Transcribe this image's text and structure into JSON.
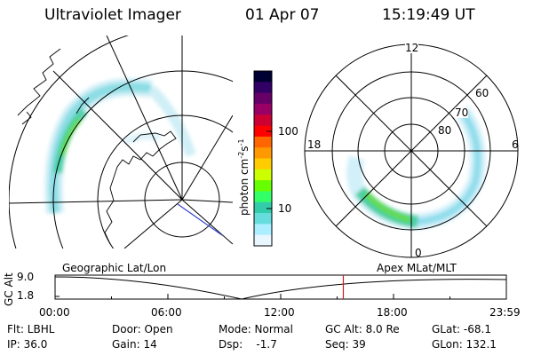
{
  "header": {
    "instrument": "Ultraviolet Imager",
    "date": "01 Apr 07",
    "time": "15:19:49 UT"
  },
  "colorbar": {
    "unit_label": "photon cm",
    "unit_exp1": "-2",
    "unit_mid": "s",
    "unit_exp2": "-1",
    "ticks": [
      "100",
      "10"
    ],
    "colors": [
      "#000033",
      "#330066",
      "#660066",
      "#990066",
      "#cc0033",
      "#ff0000",
      "#ff6600",
      "#ff9900",
      "#ffcc00",
      "#ccff00",
      "#66ff00",
      "#33ff66",
      "#33ccaa",
      "#66dddd",
      "#aaeeff",
      "#e8f6ff"
    ]
  },
  "polar_plot": {
    "mlt_labels": [
      "12",
      "18",
      "6",
      "0"
    ],
    "lat_labels": [
      "60",
      "70",
      "80"
    ]
  },
  "timeline": {
    "y_label": "GC Alt",
    "alt_top": "9.0",
    "alt_bottom": "1.8",
    "left_label": "Geographic Lat/Lon",
    "right_label": "Apex  MLat/MLT",
    "ticks": [
      "00:00",
      "06:00",
      "12:00",
      "18:00",
      "23:59"
    ],
    "current_time_hours": 15.33
  },
  "info": {
    "flt": "Flt: LBHL",
    "ip": "IP: 36.0",
    "door": "Door: Open",
    "gain": "Gain: 14",
    "mode": "Mode: Normal",
    "dsp": "Dsp:    -1.7",
    "gcalt": "GC Alt: 8.0 Re",
    "seq": "Seq: 39",
    "glat": "GLat: -68.1",
    "glon": "GLon: 132.1"
  }
}
